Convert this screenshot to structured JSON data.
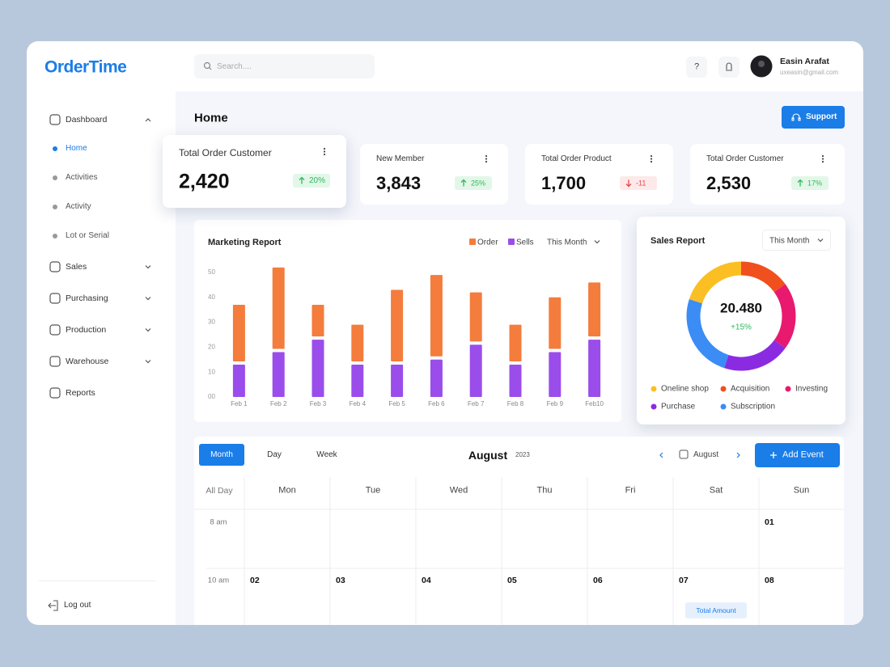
{
  "brand": {
    "logo": "OrderTime"
  },
  "search": {
    "placeholder": "Search...."
  },
  "help": "?",
  "user": {
    "name": "Easin Arafat",
    "email": "uxeasin@gmail.com"
  },
  "sidebar": {
    "items": [
      {
        "label": "Dashboard",
        "expandable": true,
        "children": [
          {
            "label": "Home",
            "active": true
          },
          {
            "label": "Activities"
          },
          {
            "label": "Activity"
          },
          {
            "label": "Lot or Serial"
          }
        ]
      },
      {
        "label": "Sales",
        "expandable": true
      },
      {
        "label": "Purchasing",
        "expandable": true
      },
      {
        "label": "Production",
        "expandable": true
      },
      {
        "label": "Warehouse",
        "expandable": true
      },
      {
        "label": "Reports"
      }
    ],
    "logout": "Log out"
  },
  "page_title": "Home",
  "support": "Support",
  "stats": [
    {
      "title": "Total Order Customer",
      "value": "2,420",
      "change": "20%",
      "trend": "up"
    },
    {
      "title": "New Member",
      "value": "3,843",
      "change": "25%",
      "trend": "up"
    },
    {
      "title": "Total Order Product",
      "value": "1,700",
      "change": "-11",
      "trend": "down"
    },
    {
      "title": "Total Order Customer",
      "value": "2,530",
      "change": "17%",
      "trend": "up"
    }
  ],
  "chart_data": [
    {
      "type": "bar",
      "title": "Marketing Report",
      "period": "This Month",
      "stacked": true,
      "categories": [
        "Feb 1",
        "Feb 2",
        "Feb 3",
        "Feb 4",
        "Feb 5",
        "Feb 6",
        "Feb 7",
        "Feb 8",
        "Feb 9",
        "Feb10"
      ],
      "series": [
        {
          "name": "Order",
          "color": "#f47c3c",
          "values": [
            24,
            34,
            14,
            16,
            30,
            34,
            21,
            16,
            22,
            23
          ]
        },
        {
          "name": "Sells",
          "color": "#9a4deb",
          "values": [
            13,
            18,
            23,
            13,
            13,
            15,
            21,
            13,
            18,
            23
          ]
        }
      ],
      "ylim": [
        0,
        50
      ],
      "yticks": [
        {
          "value": 0,
          "label": "00"
        },
        10,
        20,
        30,
        40,
        50
      ],
      "grid": false
    },
    {
      "type": "donut",
      "title": "Sales Report",
      "period": "This Month",
      "center_value": "20.480",
      "center_change": "+15%",
      "categories": [
        "Oneline shop",
        "Acquisition",
        "Investing",
        "Purchase",
        "Subscription"
      ],
      "colors": [
        "#fbbf24",
        "#f0501e",
        "#e8196e",
        "#8a2be2",
        "#3b8cf5"
      ],
      "values": [
        20,
        15,
        20,
        20,
        25
      ]
    }
  ],
  "calendar": {
    "views": [
      {
        "label": "Month",
        "active": true
      },
      {
        "label": "Day"
      },
      {
        "label": "Week"
      }
    ],
    "month": "August",
    "year": "2023",
    "nav_month": "August",
    "add_event": "Add Event",
    "all_day": "All Day",
    "days": [
      "Mon",
      "Tue",
      "Wed",
      "Thu",
      "Fri",
      "Sat",
      "Sun"
    ],
    "rows": [
      {
        "time": "8 am",
        "dates": [
          null,
          null,
          null,
          null,
          null,
          null,
          "01"
        ]
      },
      {
        "time": "10 am",
        "dates": [
          "02",
          "03",
          "04",
          "05",
          "06",
          "07",
          "08"
        ],
        "events": [
          null,
          null,
          null,
          null,
          null,
          "Total Amount",
          null
        ]
      }
    ]
  }
}
